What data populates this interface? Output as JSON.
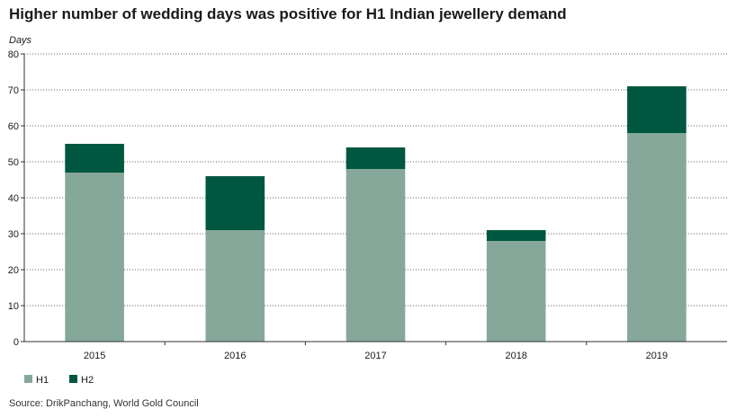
{
  "title": "Higher number of wedding days was positive for H1 Indian jewellery demand",
  "source": "Source: DrikPanchang, World Gold Council",
  "chart_data": {
    "type": "bar",
    "stacked": true,
    "title": "Higher number of wedding days was positive for H1 Indian jewellery demand",
    "xlabel": "",
    "ylabel": "Days",
    "ylim": [
      0,
      80
    ],
    "yticks": [
      0,
      10,
      20,
      30,
      40,
      50,
      60,
      70,
      80
    ],
    "grid": true,
    "legend_position": "bottom-left",
    "categories": [
      "2015",
      "2016",
      "2017",
      "2018",
      "2019"
    ],
    "series": [
      {
        "name": "H1",
        "color": "#85a89a",
        "values": [
          47,
          31,
          48,
          28,
          58
        ]
      },
      {
        "name": "H2",
        "color": "#00573f",
        "values": [
          8,
          15,
          6,
          3,
          13
        ]
      }
    ]
  }
}
